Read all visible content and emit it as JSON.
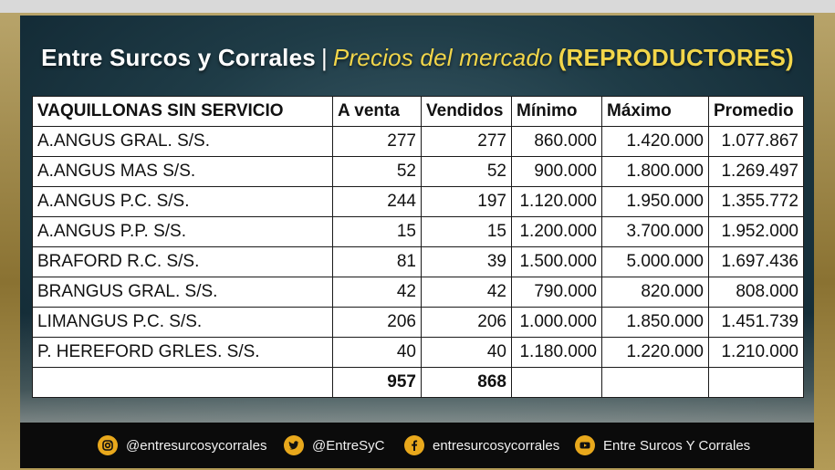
{
  "header": {
    "brand": "Entre Surcos y Corrales",
    "separator": "|",
    "subtitle": "Precios del mercado",
    "category": "(REPRODUCTORES)"
  },
  "table": {
    "headers": [
      "VAQUILLONAS SIN SERVICIO",
      "A venta",
      "Vendidos",
      "Mínimo",
      "Máximo",
      "Promedio"
    ],
    "rows": [
      {
        "name": "A.ANGUS GRAL. S/S.",
        "a_venta": "277",
        "vendidos": "277",
        "minimo": "860.000",
        "maximo": "1.420.000",
        "promedio": "1.077.867"
      },
      {
        "name": "A.ANGUS MAS S/S.",
        "a_venta": "52",
        "vendidos": "52",
        "minimo": "900.000",
        "maximo": "1.800.000",
        "promedio": "1.269.497"
      },
      {
        "name": "A.ANGUS P.C. S/S.",
        "a_venta": "244",
        "vendidos": "197",
        "minimo": "1.120.000",
        "maximo": "1.950.000",
        "promedio": "1.355.772"
      },
      {
        "name": "A.ANGUS P.P. S/S.",
        "a_venta": "15",
        "vendidos": "15",
        "minimo": "1.200.000",
        "maximo": "3.700.000",
        "promedio": "1.952.000"
      },
      {
        "name": "BRAFORD R.C. S/S.",
        "a_venta": "81",
        "vendidos": "39",
        "minimo": "1.500.000",
        "maximo": "5.000.000",
        "promedio": "1.697.436"
      },
      {
        "name": "BRANGUS GRAL. S/S.",
        "a_venta": "42",
        "vendidos": "42",
        "minimo": "790.000",
        "maximo": "820.000",
        "promedio": "808.000"
      },
      {
        "name": "LIMANGUS P.C. S/S.",
        "a_venta": "206",
        "vendidos": "206",
        "minimo": "1.000.000",
        "maximo": "1.850.000",
        "promedio": "1.451.739"
      },
      {
        "name": "P. HEREFORD GRLES. S/S.",
        "a_venta": "40",
        "vendidos": "40",
        "minimo": "1.180.000",
        "maximo": "1.220.000",
        "promedio": "1.210.000"
      }
    ],
    "totals": {
      "a_venta": "957",
      "vendidos": "868"
    }
  },
  "footer": {
    "instagram": {
      "icon": "instagram-icon",
      "label": "@entresurcosycorrales"
    },
    "twitter": {
      "icon": "twitter-icon",
      "label": "@EntreSyC"
    },
    "facebook": {
      "icon": "facebook-icon",
      "label": "entresurcosycorrales"
    },
    "youtube": {
      "icon": "youtube-icon",
      "label": "Entre Surcos Y Corrales"
    }
  },
  "colors": {
    "accent": "#f2d64a",
    "panel": "#1f3c47",
    "icon_bg": "#e8a81c",
    "footer_bg": "#0b0b0b"
  }
}
